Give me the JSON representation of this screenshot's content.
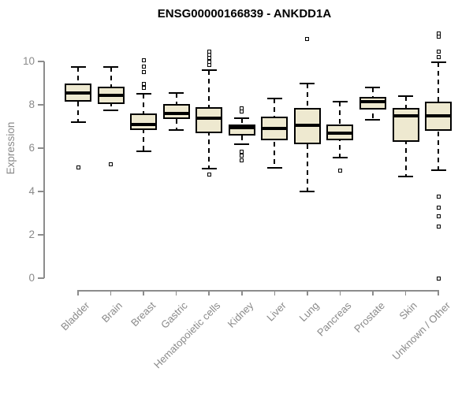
{
  "colors": {
    "box_fill": "#EEE9D0",
    "box_border": "#000000",
    "whisker": "#000000",
    "axis": "#8C8C8C",
    "tick_label": "#8A8A8A",
    "title": "#000000",
    "background": "#FFFFFF"
  },
  "chart_data": {
    "type": "boxplot",
    "title": "ENSG00000166839 - ANKDD1A",
    "ylabel": "Expression",
    "xlabel": "",
    "yticks": [
      0,
      2,
      4,
      6,
      8,
      10
    ],
    "ylim": [
      0,
      10
    ],
    "grid": false,
    "legend": "none",
    "categories": [
      "Bladder",
      "Brain",
      "Breast",
      "Gastric",
      "Hematopoietic cells",
      "Kidney",
      "Liver",
      "Lung",
      "Pancreas",
      "Prostate",
      "Skin",
      "Unknown / Other"
    ],
    "series": [
      {
        "category": "Bladder",
        "whisker_low": 7.2,
        "q1": 8.15,
        "median": 8.55,
        "q3": 9.0,
        "whisker_high": 9.75,
        "outliers": [
          5.1
        ]
      },
      {
        "category": "Brain",
        "whisker_low": 7.75,
        "q1": 8.05,
        "median": 8.45,
        "q3": 8.85,
        "whisker_high": 9.75,
        "outliers": [
          5.25
        ]
      },
      {
        "category": "Breast",
        "whisker_low": 5.85,
        "q1": 6.85,
        "median": 7.1,
        "q3": 7.6,
        "whisker_high": 8.5,
        "outliers": [
          10.05,
          9.75,
          9.5,
          8.95,
          8.8
        ]
      },
      {
        "category": "Gastric",
        "whisker_low": 6.85,
        "q1": 7.35,
        "median": 7.6,
        "q3": 8.05,
        "whisker_high": 8.55,
        "outliers": []
      },
      {
        "category": "Hematopoietic cells",
        "whisker_low": 5.05,
        "q1": 6.7,
        "median": 7.4,
        "q3": 7.9,
        "whisker_high": 9.6,
        "outliers": [
          10.45,
          10.3,
          10.15,
          10.0,
          9.85,
          4.8
        ]
      },
      {
        "category": "Kidney",
        "whisker_low": 6.2,
        "q1": 6.6,
        "median": 6.95,
        "q3": 7.1,
        "whisker_high": 7.4,
        "outliers": [
          7.85,
          7.7,
          5.85,
          5.65,
          5.45
        ]
      },
      {
        "category": "Liver",
        "whisker_low": 5.1,
        "q1": 6.35,
        "median": 6.9,
        "q3": 7.45,
        "whisker_high": 8.3,
        "outliers": []
      },
      {
        "category": "Lung",
        "whisker_low": 4.0,
        "q1": 6.2,
        "median": 7.05,
        "q3": 7.85,
        "whisker_high": 9.0,
        "outliers": [
          11.05
        ]
      },
      {
        "category": "Pancreas",
        "whisker_low": 5.55,
        "q1": 6.35,
        "median": 6.7,
        "q3": 7.1,
        "whisker_high": 8.15,
        "outliers": [
          4.95
        ]
      },
      {
        "category": "Prostate",
        "whisker_low": 7.3,
        "q1": 7.8,
        "median": 8.15,
        "q3": 8.35,
        "whisker_high": 8.8,
        "outliers": []
      },
      {
        "category": "Skin",
        "whisker_low": 4.7,
        "q1": 6.3,
        "median": 7.5,
        "q3": 7.85,
        "whisker_high": 8.4,
        "outliers": []
      },
      {
        "category": "Unknown / Other",
        "whisker_low": 5.0,
        "q1": 6.8,
        "median": 7.5,
        "q3": 8.15,
        "whisker_high": 9.95,
        "outliers": [
          11.3,
          11.15,
          10.45,
          10.2,
          3.75,
          3.25,
          2.85,
          2.4,
          0.0
        ]
      }
    ]
  }
}
